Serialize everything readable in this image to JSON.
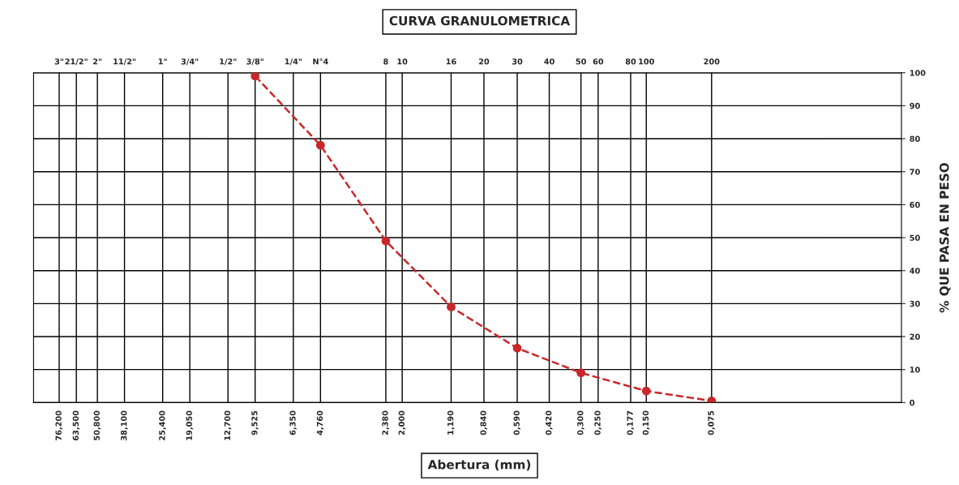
{
  "chart_data": {
    "type": "line",
    "title": "CURVA GRANULOMETRICA",
    "xlabel": "Abertura (mm)",
    "ylabel": "% QUE PASA EN PESO",
    "log": "x",
    "xlim": [
      100,
      0.01
    ],
    "ylim": [
      0,
      100
    ],
    "xticks": [
      {
        "value": 76.2,
        "label": "76,200"
      },
      {
        "value": 63.5,
        "label": "63,500"
      },
      {
        "value": 50.8,
        "label": "50,800"
      },
      {
        "value": 38.1,
        "label": "38,100"
      },
      {
        "value": 25.4,
        "label": "25,400"
      },
      {
        "value": 19.05,
        "label": "19,050"
      },
      {
        "value": 12.7,
        "label": "12,700"
      },
      {
        "value": 9.525,
        "label": "9,525"
      },
      {
        "value": 6.35,
        "label": "6,350"
      },
      {
        "value": 4.76,
        "label": "4,760"
      },
      {
        "value": 2.38,
        "label": "2,380"
      },
      {
        "value": 2.0,
        "label": "2,000"
      },
      {
        "value": 1.19,
        "label": "1,190"
      },
      {
        "value": 0.84,
        "label": "0,840"
      },
      {
        "value": 0.59,
        "label": "0,590"
      },
      {
        "value": 0.42,
        "label": "0,420"
      },
      {
        "value": 0.3,
        "label": "0,300"
      },
      {
        "value": 0.25,
        "label": "0,250"
      },
      {
        "value": 0.177,
        "label": "0,177"
      },
      {
        "value": 0.15,
        "label": "0,150"
      },
      {
        "value": 0.075,
        "label": "0,075"
      }
    ],
    "annotations": [
      "3\"",
      "21/2\"",
      "2\"",
      "11/2\"",
      "1\"",
      "3/4\"",
      "1/2\"",
      "3/8\"",
      "1/4\"",
      "N°4",
      "8",
      "10",
      "16",
      "20",
      "30",
      "40",
      "50",
      "60",
      "80",
      "100",
      "200"
    ],
    "yticks": [
      0,
      10,
      20,
      30,
      40,
      50,
      60,
      70,
      80,
      90,
      100
    ],
    "grid": true,
    "marker": "circle",
    "line_style": "dashed",
    "series": [
      {
        "color": "#c8282b",
        "x": [
          9.525,
          4.76,
          2.38,
          1.19,
          0.59,
          0.3,
          0.15,
          0.075
        ],
        "values": [
          99,
          78,
          49,
          29,
          16.5,
          9,
          3.5,
          0.5
        ]
      }
    ]
  }
}
